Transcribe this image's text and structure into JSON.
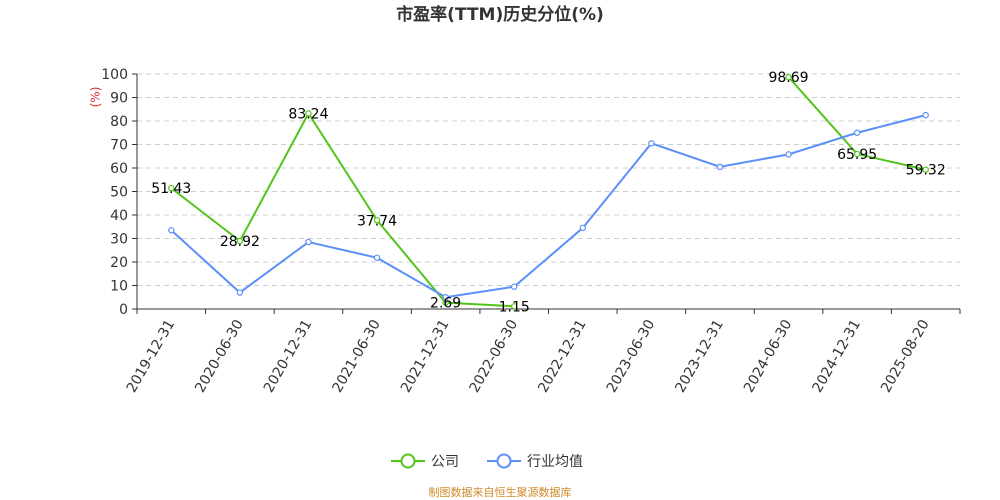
{
  "chart_data": {
    "type": "line",
    "title": "市盈率(TTM)历史分位(%)",
    "y_unit": "(%)",
    "ylim": [
      0,
      100
    ],
    "yticks": [
      0,
      10,
      20,
      30,
      40,
      50,
      60,
      70,
      80,
      90,
      100
    ],
    "grid": "horizontal dashed",
    "legend_position": "bottom-center",
    "categories": [
      "2019-12-31",
      "2020-06-30",
      "2020-12-31",
      "2021-06-30",
      "2021-12-31",
      "2022-06-30",
      "2022-12-31",
      "2023-06-30",
      "2023-12-31",
      "2024-06-30",
      "2024-12-31",
      "2025-08-20"
    ],
    "series": [
      {
        "name": "公司",
        "color": "#52c41a",
        "values": [
          51.43,
          28.92,
          83.24,
          37.74,
          2.69,
          1.15,
          null,
          null,
          null,
          98.69,
          65.95,
          59.32
        ],
        "labels": [
          "51.43",
          "28.92",
          "83.24",
          "37.74",
          "2.69",
          "1.15",
          null,
          null,
          null,
          "98.69",
          "65.95",
          "59.32"
        ]
      },
      {
        "name": "行业均值",
        "color": "#5b8ff9",
        "values": [
          33.5,
          7,
          28.5,
          21.8,
          5,
          9.5,
          34.5,
          70.5,
          60.5,
          65.8,
          75,
          82.5
        ]
      }
    ],
    "source": "制图数据来自恒生聚源数据库",
    "source_color": "#d08a2a",
    "unit_color": "#e03030"
  }
}
